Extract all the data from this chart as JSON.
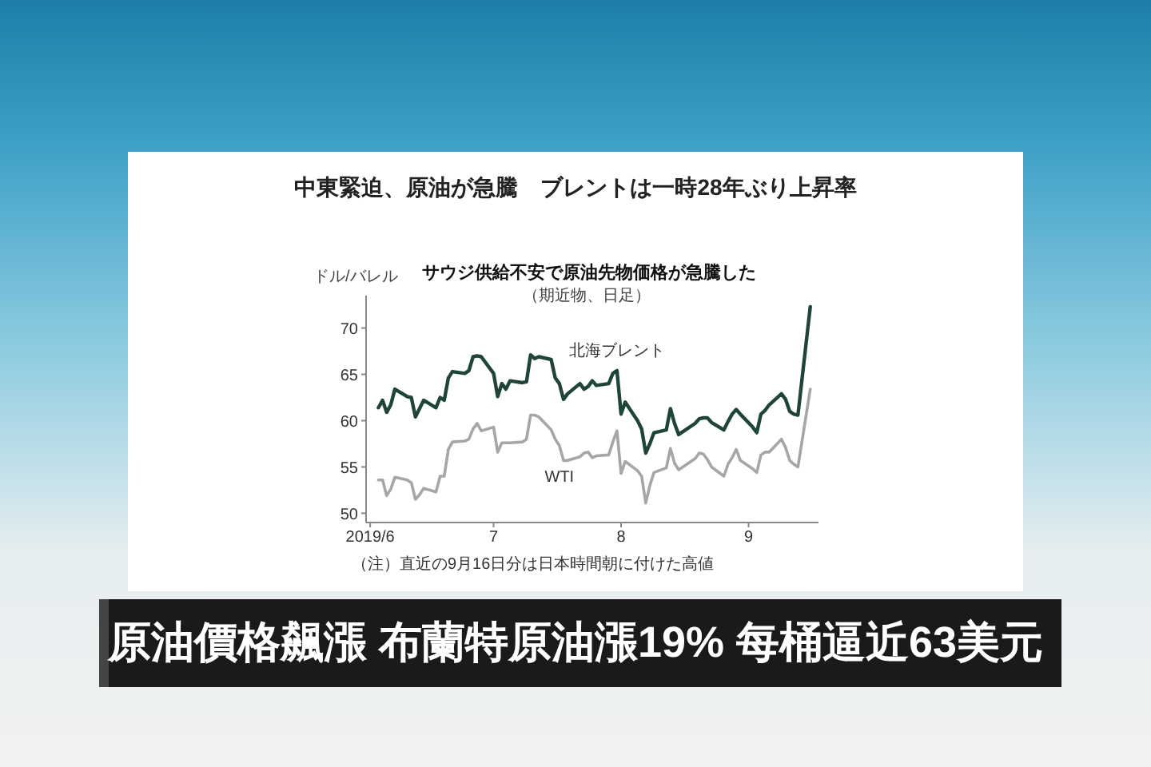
{
  "chart_data": {
    "type": "line",
    "title": "中東緊迫、原油が急騰　ブレントは一時28年ぶり上昇率",
    "subtitle": "サウジ供給不安で原油先物価格が急騰した",
    "ylabel": "ドル/バレル",
    "annotations": [
      "（期近物、日足）",
      "（注）直近の9月16日分は日本時間朝に付けた高値",
      "原油價格飆漲 布蘭特原油漲19% 每桶逼近63美元"
    ],
    "x": [
      "2019-06-03",
      "2019-06-04",
      "2019-06-05",
      "2019-06-06",
      "2019-06-07",
      "2019-06-10",
      "2019-06-11",
      "2019-06-12",
      "2019-06-13",
      "2019-06-14",
      "2019-06-17",
      "2019-06-18",
      "2019-06-19",
      "2019-06-20",
      "2019-06-21",
      "2019-06-24",
      "2019-06-25",
      "2019-06-26",
      "2019-06-27",
      "2019-06-28",
      "2019-07-01",
      "2019-07-02",
      "2019-07-03",
      "2019-07-04",
      "2019-07-05",
      "2019-07-08",
      "2019-07-09",
      "2019-07-10",
      "2019-07-11",
      "2019-07-12",
      "2019-07-15",
      "2019-07-16",
      "2019-07-17",
      "2019-07-18",
      "2019-07-19",
      "2019-07-22",
      "2019-07-23",
      "2019-07-24",
      "2019-07-25",
      "2019-07-26",
      "2019-07-29",
      "2019-07-30",
      "2019-07-31",
      "2019-08-01",
      "2019-08-02",
      "2019-08-05",
      "2019-08-06",
      "2019-08-07",
      "2019-08-08",
      "2019-08-09",
      "2019-08-12",
      "2019-08-13",
      "2019-08-14",
      "2019-08-15",
      "2019-08-16",
      "2019-08-19",
      "2019-08-20",
      "2019-08-21",
      "2019-08-22",
      "2019-08-23",
      "2019-08-26",
      "2019-08-27",
      "2019-08-28",
      "2019-08-29",
      "2019-08-30",
      "2019-09-02",
      "2019-09-03",
      "2019-09-04",
      "2019-09-05",
      "2019-09-06",
      "2019-09-09",
      "2019-09-10",
      "2019-09-11",
      "2019-09-12",
      "2019-09-13",
      "2019-09-16"
    ],
    "series": [
      {
        "name": "北海ブレント",
        "color": "#1f4538",
        "values": [
          61.4,
          62.2,
          60.9,
          61.7,
          63.4,
          62.6,
          62.5,
          60.4,
          61.3,
          62.2,
          61.4,
          62.5,
          62.2,
          64.6,
          65.3,
          65.1,
          65.4,
          66.9,
          67.0,
          66.9,
          65.1,
          62.6,
          64.0,
          63.4,
          64.3,
          64.1,
          64.2,
          67.1,
          66.7,
          66.9,
          66.6,
          64.6,
          64.0,
          62.3,
          62.9,
          64.0,
          63.4,
          63.7,
          64.3,
          63.8,
          64.0,
          65.1,
          65.4,
          60.7,
          62.0,
          60.0,
          59.1,
          56.5,
          57.5,
          58.7,
          59.0,
          61.3,
          59.7,
          58.5,
          58.8,
          59.7,
          60.2,
          60.3,
          60.3,
          59.8,
          59.0,
          59.9,
          60.7,
          61.2,
          60.7,
          59.3,
          58.7,
          60.7,
          61.1,
          61.7,
          62.9,
          62.3,
          61.0,
          60.7,
          60.6,
          72.3
        ]
      },
      {
        "name": "WTI",
        "color": "#a6a6a6",
        "values": [
          53.6,
          53.6,
          51.9,
          52.6,
          53.9,
          53.6,
          53.3,
          51.5,
          52.0,
          52.7,
          52.3,
          54.0,
          54.0,
          56.9,
          57.7,
          57.8,
          58.0,
          59.1,
          59.7,
          58.9,
          59.3,
          56.6,
          57.6,
          57.6,
          57.6,
          57.7,
          58.0,
          60.6,
          60.6,
          60.4,
          59.0,
          58.0,
          57.3,
          55.7,
          55.7,
          56.1,
          56.5,
          56.6,
          56.0,
          56.2,
          56.3,
          57.7,
          58.9,
          54.3,
          55.6,
          54.6,
          54.0,
          51.1,
          53.0,
          54.4,
          54.9,
          57.0,
          55.4,
          54.7,
          55.0,
          55.9,
          56.5,
          56.4,
          55.8,
          55.0,
          54.0,
          55.3,
          56.0,
          56.9,
          55.7,
          54.8,
          54.4,
          56.3,
          56.6,
          56.6,
          58.0,
          57.1,
          55.7,
          55.3,
          55.0,
          63.4
        ]
      }
    ],
    "xlim": [
      "2019-05-31",
      "2019-09-18"
    ],
    "xticks": [
      {
        "value": "2019-06-01",
        "label": "2019/6"
      },
      {
        "value": "2019-07-01",
        "label": "7"
      },
      {
        "value": "2019-08-01",
        "label": "8"
      },
      {
        "value": "2019-09-01",
        "label": "9"
      }
    ],
    "ylim": [
      49,
      73.5
    ],
    "yticks": [
      50,
      55,
      60,
      65,
      70
    ],
    "marker": "none",
    "line_style": "solid"
  }
}
